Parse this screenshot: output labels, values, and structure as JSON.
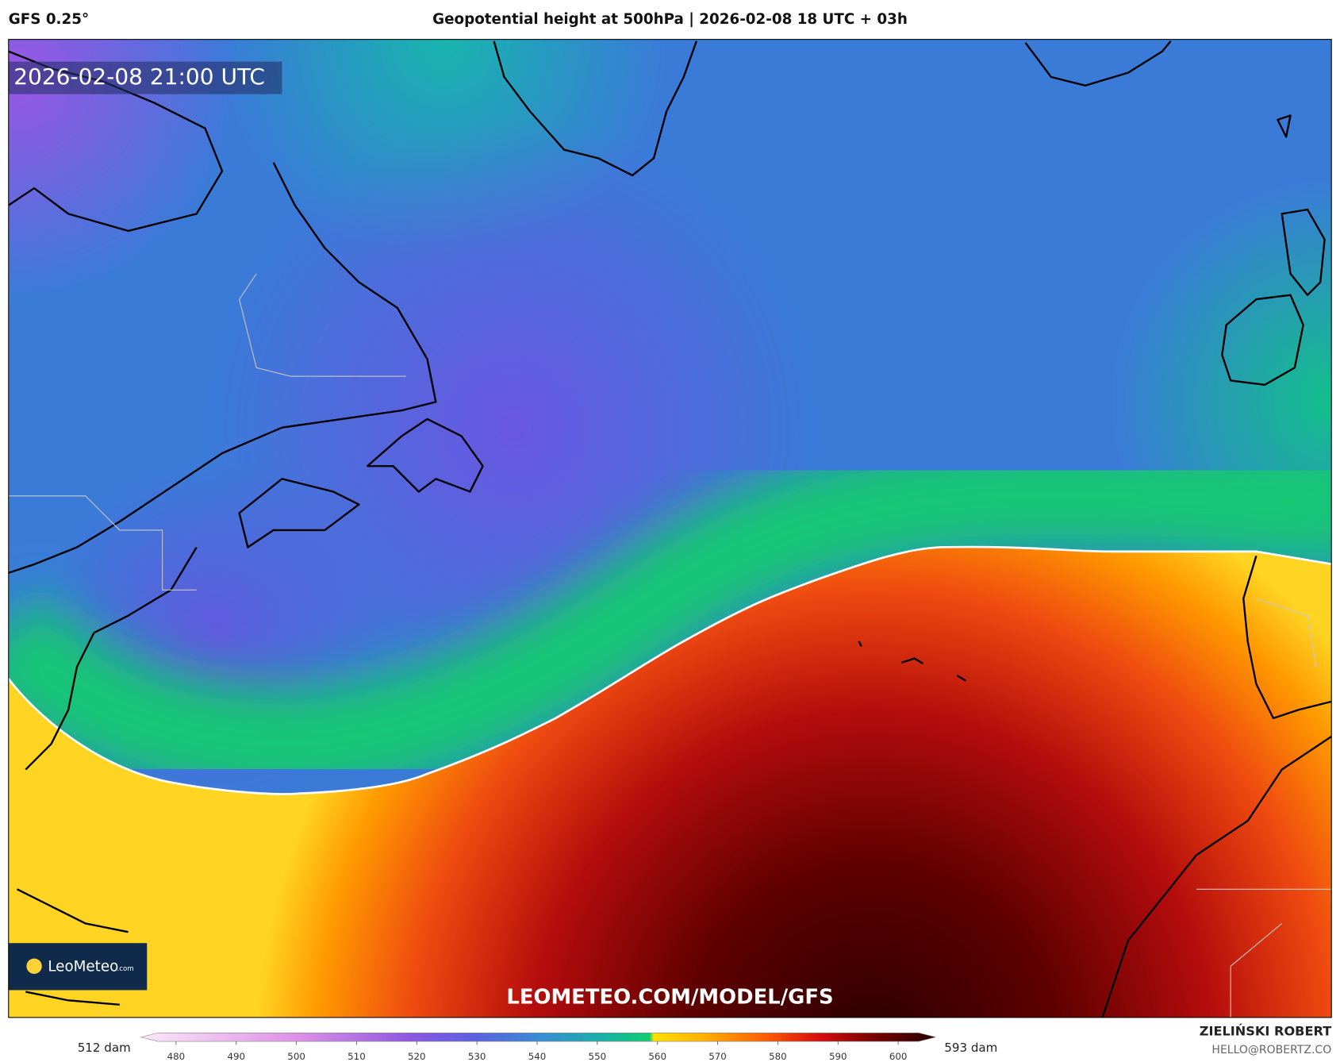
{
  "header": {
    "model": "GFS 0.25°",
    "title": "Geopotential height at 500hPa | 2026-02-08 18 UTC + 03h"
  },
  "map": {
    "valid_time": "2026-02-08 21:00 UTC",
    "watermark": "LEOMETEO.COM/MODEL/GFS",
    "logo": {
      "name": "LeoMeteo",
      "suffix": ".com"
    }
  },
  "legend": {
    "min_label": "512 dam",
    "max_label": "593 dam",
    "ticks": [
      480,
      490,
      500,
      510,
      520,
      530,
      540,
      550,
      560,
      570,
      580,
      590,
      600
    ]
  },
  "footer": {
    "author": "ZIELIŃSKI ROBERT",
    "email": "HELLO@ROBERTZ.CO"
  }
}
